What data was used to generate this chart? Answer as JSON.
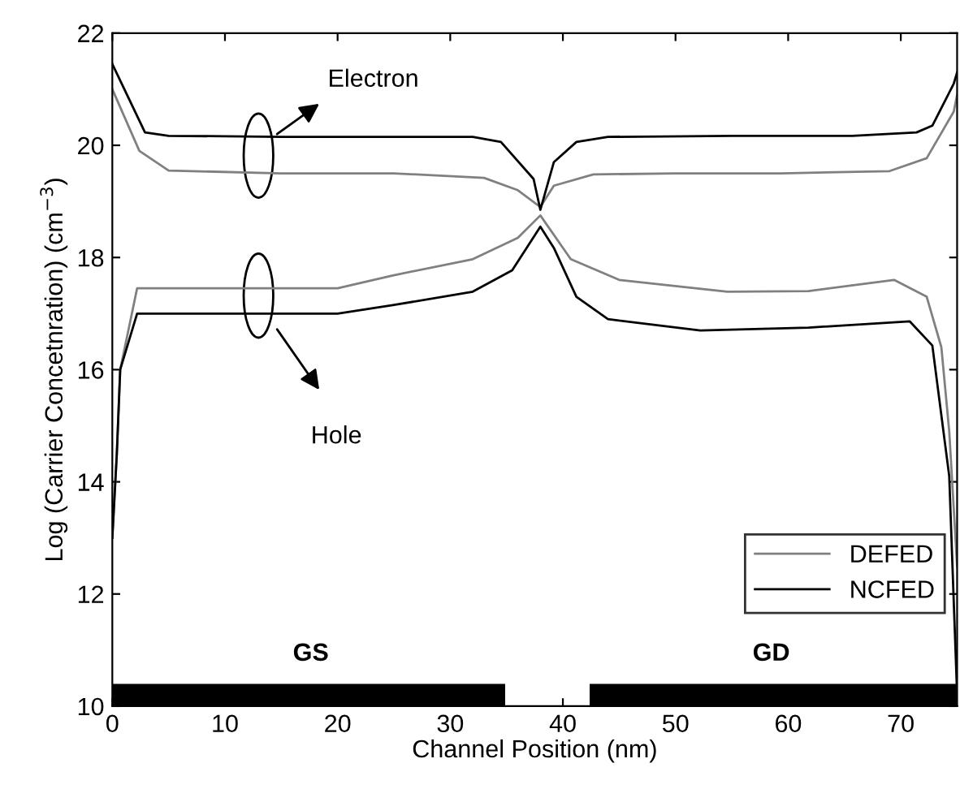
{
  "chart_data": {
    "type": "line",
    "xlabel": "Channel Position (nm)",
    "ylabel": "Log (Carrier Concetnration) (cm$^{−3}$)",
    "xlim": [
      0,
      75
    ],
    "ylim": [
      10,
      22
    ],
    "xticks": [
      0,
      10,
      20,
      30,
      40,
      50,
      60,
      70
    ],
    "yticks": [
      10,
      12,
      14,
      16,
      18,
      20,
      22
    ],
    "grid": false,
    "legend": "bottom right",
    "marker": "none",
    "line_style": "solid",
    "series": [
      {
        "name": "DEFED",
        "color": "#808080",
        "x": [
          0,
          2.4,
          5,
          15,
          25,
          33,
          36,
          38,
          39.2,
          42.7,
          50,
          59.3,
          69,
          72.3,
          74.7,
          75
        ],
        "values": [
          21.0,
          19.9,
          19.55,
          19.5,
          19.5,
          19.42,
          19.2,
          18.9,
          19.28,
          19.48,
          19.5,
          19.5,
          19.54,
          19.77,
          20.6,
          20.9
        ]
      },
      {
        "name": null,
        "color": "#808080",
        "x": [
          0,
          0.4,
          0.7,
          2.2,
          10,
          20,
          24.9,
          32,
          36,
          38,
          40.7,
          45,
          54.6,
          61.8,
          69.4,
          72.3,
          73.6,
          74.3,
          75
        ],
        "values": [
          13.0,
          14.5,
          16.0,
          17.45,
          17.45,
          17.45,
          17.68,
          17.97,
          18.35,
          18.75,
          17.97,
          17.6,
          17.39,
          17.4,
          17.6,
          17.3,
          16.4,
          14.9,
          12.5
        ]
      },
      {
        "name": "NCFED",
        "color": "#000000",
        "x": [
          0,
          2.9,
          5,
          15,
          25,
          32,
          34.5,
          37.4,
          38,
          39.2,
          41.2,
          44,
          55,
          65.7,
          71.4,
          72.8,
          74.7,
          75
        ],
        "values": [
          21.45,
          20.23,
          20.17,
          20.15,
          20.15,
          20.15,
          20.06,
          19.4,
          18.85,
          19.7,
          20.06,
          20.15,
          20.17,
          20.17,
          20.23,
          20.35,
          21.1,
          21.3
        ]
      },
      {
        "name": null,
        "color": "#000000",
        "x": [
          0,
          0.4,
          0.7,
          2.2,
          10,
          20,
          24.9,
          32,
          35.5,
          38,
          39.2,
          41.2,
          44,
          52.2,
          61.8,
          70.8,
          72.8,
          74.3,
          75
        ],
        "values": [
          13.0,
          14.5,
          16.0,
          17.0,
          17.0,
          17.0,
          17.15,
          17.39,
          17.77,
          18.55,
          18.17,
          17.3,
          16.9,
          16.7,
          16.75,
          16.86,
          16.43,
          14.1,
          10.2
        ]
      }
    ],
    "annotations": [
      "Electron",
      "Hole",
      "GS",
      "GD"
    ]
  }
}
